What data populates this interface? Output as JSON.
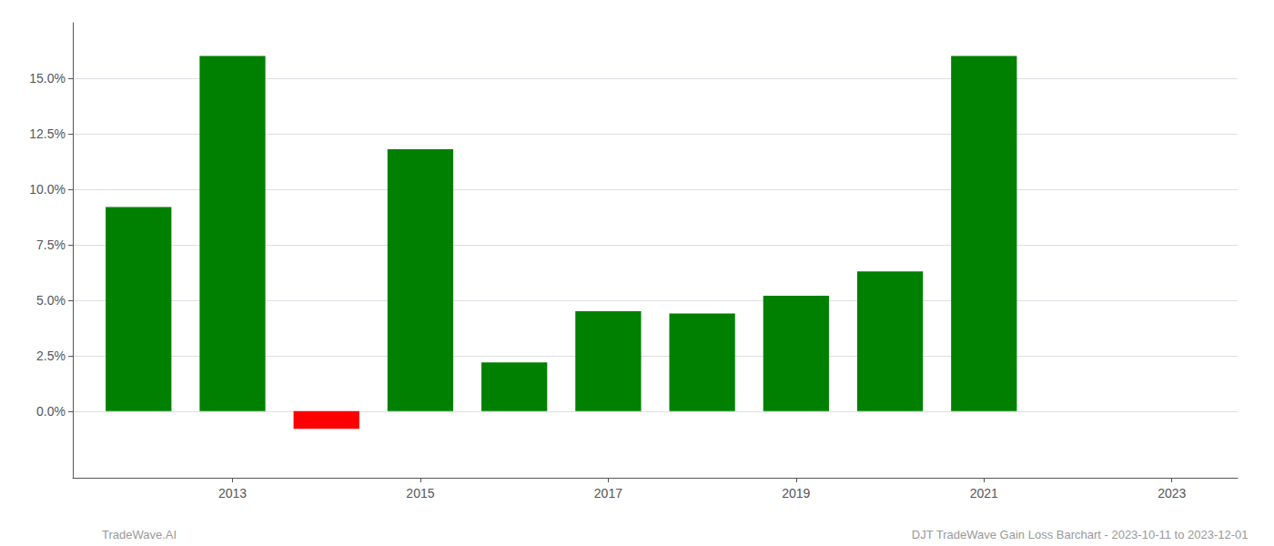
{
  "chart_data": {
    "type": "bar",
    "x": [
      2012,
      2013,
      2014,
      2015,
      2016,
      2017,
      2018,
      2019,
      2020,
      2021,
      2022
    ],
    "values": [
      0.092,
      0.16,
      -0.008,
      0.118,
      0.022,
      0.045,
      0.044,
      0.052,
      0.063,
      0.16,
      0.0
    ],
    "colors": [
      "#008000",
      "#008000",
      "#ff0000",
      "#008000",
      "#008000",
      "#008000",
      "#008000",
      "#008000",
      "#008000",
      "#008000",
      "#008000"
    ],
    "xlim": [
      2011.3,
      2023.7
    ],
    "xticks": [
      2013,
      2015,
      2017,
      2019,
      2021,
      2023
    ],
    "ylim": [
      -0.03,
      0.175
    ],
    "yticks": [
      {
        "value": 0.0,
        "label": "0.0%"
      },
      {
        "value": 0.025,
        "label": "2.5%"
      },
      {
        "value": 0.05,
        "label": "5.0%"
      },
      {
        "value": 0.075,
        "label": "7.5%"
      },
      {
        "value": 0.1,
        "label": "10.0%"
      },
      {
        "value": 0.125,
        "label": "12.5%"
      },
      {
        "value": 0.15,
        "label": "15.0%"
      }
    ],
    "grid": true,
    "annotations": [
      "TradeWave.AI",
      "DJT TradeWave Gain Loss Barchart - 2023-10-11 to 2023-12-01"
    ]
  }
}
